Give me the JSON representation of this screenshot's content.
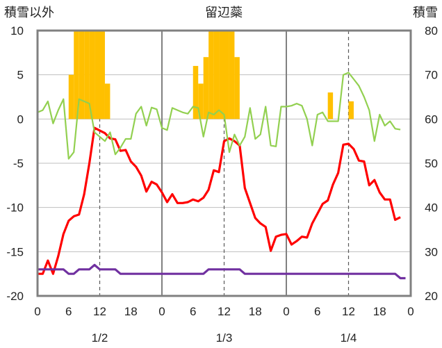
{
  "chart_data": {
    "type": "bar+line",
    "title": "留辺蘂",
    "left_axis": {
      "label": "積雪以外",
      "ylim": [
        -20,
        10
      ],
      "ticks": [
        "10",
        "5",
        "0",
        "-5",
        "-10",
        "-15",
        "-20"
      ]
    },
    "right_axis": {
      "label": "積雪",
      "ylim": [
        20,
        80
      ],
      "ticks": [
        "80",
        "70",
        "60",
        "50",
        "40",
        "30",
        "20"
      ]
    },
    "x_axis": {
      "range_hours": [
        0,
        72
      ],
      "tick_labels": [
        "0",
        "6",
        "12",
        "18",
        "0",
        "6",
        "12",
        "18",
        "0",
        "6",
        "12",
        "18",
        "0"
      ],
      "day_labels": [
        "1/2",
        "1/3",
        "1/4"
      ]
    },
    "colors": {
      "precip": "#FFC000",
      "temperature": "#FF0000",
      "wind": "#92D050",
      "snow_depth": "#7030A0",
      "frame": "#808080"
    },
    "series": [
      {
        "axis": "left",
        "kind": "bar",
        "points": [
          [
            7,
            5
          ],
          [
            8,
            10
          ],
          [
            9,
            10
          ],
          [
            10,
            10
          ],
          [
            11,
            10
          ],
          [
            12,
            10
          ],
          [
            13,
            10
          ],
          [
            14,
            4
          ],
          [
            31,
            6
          ],
          [
            32,
            4
          ],
          [
            33,
            7
          ],
          [
            34,
            10
          ],
          [
            35,
            10
          ],
          [
            36,
            10
          ],
          [
            37,
            10
          ],
          [
            38,
            10
          ],
          [
            39,
            7
          ],
          [
            57,
            3
          ],
          [
            61,
            2
          ]
        ]
      },
      {
        "axis": "left",
        "kind": "line",
        "points": [
          [
            0,
            -17.5
          ],
          [
            1,
            -17.5
          ],
          [
            2,
            -16
          ],
          [
            3,
            -17.5
          ],
          [
            4,
            -15.5
          ],
          [
            5,
            -13
          ],
          [
            6,
            -11.5
          ],
          [
            7,
            -11
          ],
          [
            8,
            -10.8
          ],
          [
            9,
            -8.5
          ],
          [
            10,
            -5
          ],
          [
            11,
            -1
          ],
          [
            12,
            -1.3
          ],
          [
            13,
            -1.6
          ],
          [
            14,
            -2.2
          ],
          [
            15,
            -2.3
          ],
          [
            16,
            -3.6
          ],
          [
            17,
            -3.5
          ],
          [
            18,
            -4.8
          ],
          [
            19,
            -5.4
          ],
          [
            20,
            -6.4
          ],
          [
            21,
            -8.2
          ],
          [
            22,
            -7.1
          ],
          [
            23,
            -7.4
          ],
          [
            24,
            -8.3
          ],
          [
            25,
            -9.4
          ],
          [
            26,
            -8.5
          ],
          [
            27,
            -9.5
          ],
          [
            28,
            -9.5
          ],
          [
            29,
            -9.4
          ],
          [
            30,
            -9.1
          ],
          [
            31,
            -9.3
          ],
          [
            32,
            -8.9
          ],
          [
            33,
            -8
          ],
          [
            34,
            -5.8
          ],
          [
            35,
            -6
          ],
          [
            36,
            -2.5
          ],
          [
            37,
            -2.2
          ],
          [
            38,
            -2.5
          ],
          [
            39,
            -3
          ],
          [
            40,
            -7.8
          ],
          [
            41,
            -9.5
          ],
          [
            42,
            -11.2
          ],
          [
            43,
            -11.8
          ],
          [
            44,
            -12.2
          ],
          [
            45,
            -14.9
          ],
          [
            46,
            -13.3
          ],
          [
            47,
            -13.1
          ],
          [
            48,
            -13
          ],
          [
            49,
            -14.2
          ],
          [
            50,
            -13.8
          ],
          [
            51,
            -13.3
          ],
          [
            52,
            -13.4
          ],
          [
            53,
            -11.8
          ],
          [
            54,
            -10.7
          ],
          [
            55,
            -9.6
          ],
          [
            56,
            -9.2
          ],
          [
            57,
            -7.4
          ],
          [
            58,
            -6.1
          ],
          [
            59,
            -2.9
          ],
          [
            60,
            -2.8
          ],
          [
            61,
            -3.4
          ],
          [
            62,
            -4.7
          ],
          [
            63,
            -4.8
          ],
          [
            64,
            -7.5
          ],
          [
            65,
            -6.9
          ],
          [
            66,
            -8.3
          ],
          [
            67,
            -9.1
          ],
          [
            68,
            -9.1
          ],
          [
            69,
            -11.4
          ],
          [
            70,
            -11.1
          ]
        ]
      },
      {
        "axis": "right",
        "kind": "line",
        "points": [
          [
            0,
            61.5
          ],
          [
            1,
            62
          ],
          [
            2,
            64
          ],
          [
            3,
            59
          ],
          [
            4,
            62
          ],
          [
            5,
            64.5
          ],
          [
            6,
            51
          ],
          [
            7,
            52.5
          ],
          [
            8,
            64.5
          ],
          [
            9,
            64
          ],
          [
            10,
            63.5
          ],
          [
            11,
            57
          ],
          [
            12,
            56
          ],
          [
            13,
            55
          ],
          [
            14,
            57
          ],
          [
            15,
            52
          ],
          [
            16,
            53.5
          ],
          [
            17,
            55.5
          ],
          [
            18,
            55.5
          ],
          [
            19,
            61.2
          ],
          [
            20,
            62.8
          ],
          [
            21,
            58.5
          ],
          [
            22,
            62.6
          ],
          [
            23,
            62.2
          ],
          [
            24,
            58
          ],
          [
            25,
            57.5
          ],
          [
            26,
            62.5
          ],
          [
            27,
            62
          ],
          [
            28,
            61.5
          ],
          [
            29,
            61.2
          ],
          [
            30,
            62.8
          ],
          [
            31,
            62.5
          ],
          [
            32,
            56
          ],
          [
            33,
            61.5
          ],
          [
            34,
            61
          ],
          [
            35,
            62
          ],
          [
            36,
            61
          ],
          [
            37,
            52.5
          ],
          [
            38,
            56.5
          ],
          [
            39,
            54
          ],
          [
            40,
            56
          ],
          [
            41,
            62.5
          ],
          [
            42,
            55.5
          ],
          [
            43,
            56.5
          ],
          [
            44,
            62.8
          ],
          [
            45,
            54
          ],
          [
            46,
            53.8
          ],
          [
            47,
            62.8
          ],
          [
            48,
            62.8
          ],
          [
            49,
            63
          ],
          [
            50,
            63.5
          ],
          [
            51,
            63
          ],
          [
            52,
            60
          ],
          [
            53,
            54
          ],
          [
            54,
            61
          ],
          [
            55,
            61.5
          ],
          [
            56,
            59.5
          ],
          [
            57,
            59.5
          ],
          [
            58,
            59.5
          ],
          [
            59,
            70
          ],
          [
            60,
            70.5
          ],
          [
            61,
            69
          ],
          [
            62,
            67.5
          ],
          [
            63,
            65
          ],
          [
            64,
            62
          ],
          [
            65,
            55
          ],
          [
            66,
            61
          ],
          [
            67,
            58.5
          ],
          [
            68,
            59.5
          ],
          [
            69,
            57.8
          ],
          [
            70,
            57.6
          ]
        ]
      },
      {
        "axis": "left",
        "kind": "line",
        "points": [
          [
            0,
            -17
          ],
          [
            5,
            -17
          ],
          [
            6,
            -17.5
          ],
          [
            7,
            -17.5
          ],
          [
            8,
            -17
          ],
          [
            10,
            -17
          ],
          [
            11,
            -16.5
          ],
          [
            12,
            -17
          ],
          [
            15,
            -17
          ],
          [
            16,
            -17.5
          ],
          [
            32,
            -17.5
          ],
          [
            33,
            -17
          ],
          [
            39,
            -17
          ],
          [
            40,
            -17.5
          ],
          [
            69,
            -17.5
          ],
          [
            70,
            -18
          ],
          [
            71,
            -18
          ]
        ]
      }
    ]
  }
}
